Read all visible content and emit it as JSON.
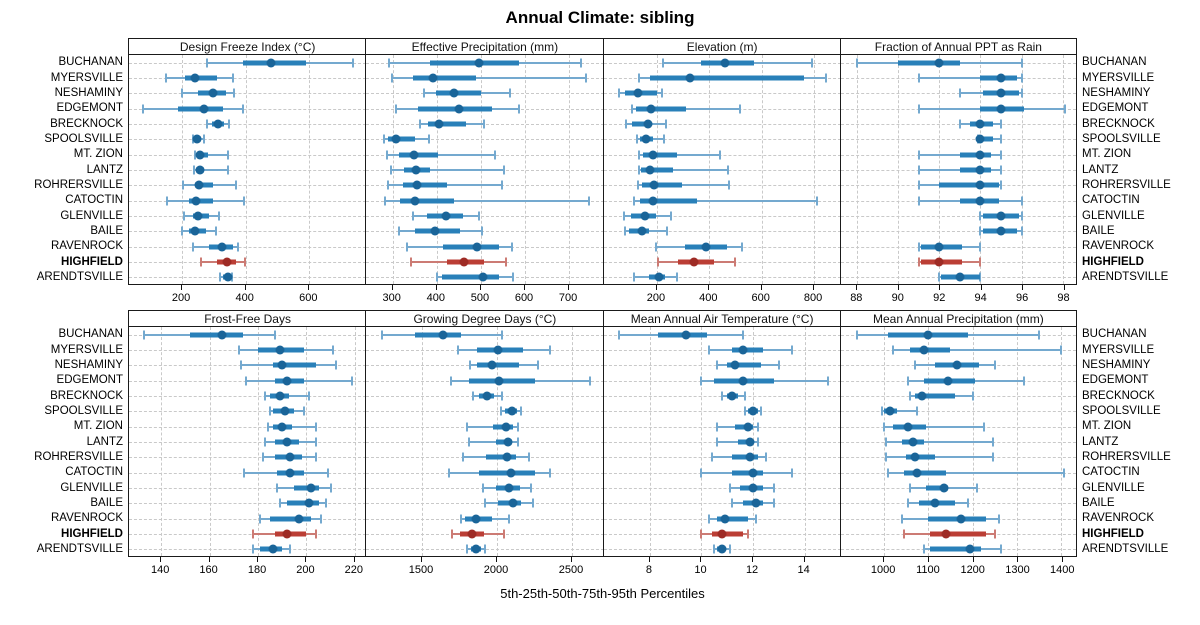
{
  "title": "Annual Climate: sibling",
  "caption": "5th-25th-50th-75th-95th Percentiles",
  "colors": {
    "normal_dot": "#1a6599",
    "normal_band": "#2980b9",
    "normal_line": "#74a9cf",
    "highlight_dot": "#9e2b25",
    "highlight_band": "#bb3e35",
    "highlight_line": "#cc7b74",
    "grid": "#c9c9c9",
    "border": "#1a1a1a"
  },
  "chart_data": {
    "type": "dot-whisker-percentile",
    "layout": "2 rows x 4 columns trellis, site labels on left and right, dashed grid on, no legend",
    "percentiles": [
      5,
      25,
      50,
      75,
      95
    ],
    "sites": [
      "BUCHANAN",
      "MYERSVILLE",
      "NESHAMINY",
      "EDGEMONT",
      "BRECKNOCK",
      "SPOOLSVILLE",
      "MT. ZION",
      "LANTZ",
      "ROHRERSVILLE",
      "CATOCTIN",
      "GLENVILLE",
      "BAILE",
      "RAVENROCK",
      "HIGHFIELD",
      "ARENDTSVILLE"
    ],
    "highlight_site": "HIGHFIELD",
    "panels": [
      {
        "title": "Design Freeze Index (°C)",
        "ticks": [
          200,
          400,
          600
        ],
        "xlim": [
          33,
          779
        ],
        "series": [
          [
            278,
            392,
            480,
            590,
            738
          ],
          [
            148,
            210,
            240,
            309,
            361
          ],
          [
            201,
            249,
            297,
            339,
            363
          ],
          [
            77,
            188,
            270,
            328,
            393
          ],
          [
            277,
            294,
            314,
            333,
            347
          ],
          [
            233,
            239,
            248,
            259,
            270
          ],
          [
            239,
            247,
            257,
            283,
            345
          ],
          [
            236,
            243,
            256,
            268,
            343
          ],
          [
            204,
            239,
            253,
            296,
            370
          ],
          [
            151,
            222,
            244,
            296,
            395
          ],
          [
            206,
            233,
            250,
            286,
            315
          ],
          [
            199,
            222,
            241,
            275,
            308
          ],
          [
            235,
            286,
            325,
            360,
            376
          ],
          [
            259,
            309,
            342,
            370,
            397
          ],
          [
            320,
            328,
            345,
            351,
            358
          ]
        ]
      },
      {
        "title": "Effective Precipitation (mm)",
        "ticks": [
          300,
          400,
          500,
          600,
          700
        ],
        "xlim": [
          240,
          778
        ],
        "series": [
          [
            291,
            384,
            495,
            586,
            727
          ],
          [
            299,
            346,
            392,
            490,
            739
          ],
          [
            371,
            398,
            440,
            500,
            566
          ],
          [
            307,
            358,
            451,
            526,
            586
          ],
          [
            363,
            379,
            404,
            466,
            506
          ],
          [
            280,
            289,
            307,
            351,
            382
          ],
          [
            287,
            315,
            349,
            403,
            533
          ],
          [
            295,
            325,
            353,
            384,
            552
          ],
          [
            290,
            323,
            354,
            423,
            548
          ],
          [
            282,
            316,
            351,
            440,
            746
          ],
          [
            347,
            377,
            420,
            459,
            496
          ],
          [
            315,
            351,
            395,
            453,
            502
          ],
          [
            332,
            414,
            492,
            541,
            571
          ],
          [
            341,
            422,
            461,
            507,
            556
          ],
          [
            401,
            412,
            505,
            541,
            573
          ]
        ]
      },
      {
        "title": "Elevation (m)",
        "ticks": [
          200,
          400,
          600,
          800
        ],
        "xlim": [
          -4,
          902
        ],
        "series": [
          [
            225,
            367,
            460,
            570,
            791
          ],
          [
            133,
            175,
            325,
            763,
            844
          ],
          [
            57,
            78,
            129,
            200,
            218
          ],
          [
            104,
            120,
            179,
            310,
            519
          ],
          [
            82,
            105,
            167,
            177,
            234
          ],
          [
            124,
            135,
            158,
            186,
            228
          ],
          [
            130,
            146,
            186,
            275,
            439
          ],
          [
            130,
            139,
            175,
            260,
            471
          ],
          [
            129,
            143,
            190,
            297,
            475
          ],
          [
            114,
            135,
            186,
            352,
            810
          ],
          [
            76,
            101,
            156,
            196,
            253
          ],
          [
            80,
            95,
            142,
            171,
            240
          ],
          [
            196,
            308,
            386,
            468,
            525
          ],
          [
            203,
            282,
            342,
            418,
            500
          ],
          [
            114,
            171,
            209,
            232,
            278
          ]
        ]
      },
      {
        "title": "Fraction of Annual PPT as Rain",
        "ticks": [
          88,
          90,
          92,
          94,
          96,
          98
        ],
        "xlim": [
          87.2,
          98.65
        ],
        "series": [
          [
            88.0,
            90.0,
            92.0,
            93.0,
            96.0
          ],
          [
            91.0,
            94.0,
            95.0,
            95.8,
            96.0
          ],
          [
            93.0,
            94.1,
            95.0,
            95.9,
            96.0
          ],
          [
            91.0,
            94.0,
            95.0,
            96.1,
            98.1
          ],
          [
            93.0,
            93.5,
            94.0,
            94.6,
            95.0
          ],
          [
            93.9,
            94.0,
            94.0,
            94.6,
            95.0
          ],
          [
            91.0,
            93.0,
            94.0,
            94.5,
            95.0
          ],
          [
            91.0,
            93.0,
            94.0,
            94.5,
            95.0
          ],
          [
            91.0,
            92.0,
            94.0,
            94.9,
            95.0
          ],
          [
            91.0,
            93.0,
            94.0,
            94.9,
            96.0
          ],
          [
            94.0,
            94.1,
            95.0,
            95.9,
            96.0
          ],
          [
            94.0,
            94.1,
            95.0,
            95.8,
            96.0
          ],
          [
            91.0,
            91.1,
            92.0,
            93.1,
            94.0
          ],
          [
            91.0,
            91.1,
            92.0,
            93.1,
            94.0
          ],
          [
            92.0,
            92.1,
            93.0,
            94.0,
            94.0
          ]
        ]
      },
      {
        "title": "Frost-Free Days",
        "ticks": [
          140,
          160,
          180,
          200,
          220
        ],
        "xlim": [
          126.7,
          224.7
        ],
        "series": [
          [
            133,
            152,
            165,
            174,
            187
          ],
          [
            172,
            180,
            189,
            199,
            211
          ],
          [
            173,
            186,
            190,
            204,
            212
          ],
          [
            175,
            187,
            192,
            199,
            219
          ],
          [
            183,
            185,
            189,
            193,
            201
          ],
          [
            185,
            186,
            191,
            195,
            199
          ],
          [
            184,
            186,
            190,
            194,
            204
          ],
          [
            183,
            187,
            192,
            197,
            204
          ],
          [
            182,
            187,
            193,
            198,
            204
          ],
          [
            174,
            188,
            193,
            199,
            209
          ],
          [
            188,
            195,
            202,
            205,
            210
          ],
          [
            189,
            192,
            201,
            205,
            208
          ],
          [
            181,
            185,
            197,
            202,
            206
          ],
          [
            178,
            187,
            192,
            200,
            204
          ],
          [
            178,
            181,
            186,
            190,
            193
          ]
        ]
      },
      {
        "title": "Growing Degree Days (°C)",
        "ticks": [
          1500,
          2000,
          2500
        ],
        "xlim": [
          1128,
          2710
        ],
        "series": [
          [
            1230,
            1450,
            1640,
            1760,
            2030
          ],
          [
            1740,
            1865,
            2005,
            2170,
            2350
          ],
          [
            1820,
            1865,
            1965,
            2145,
            2270
          ],
          [
            1695,
            1815,
            2015,
            2250,
            2620
          ],
          [
            1840,
            1880,
            1930,
            1980,
            2030
          ],
          [
            2025,
            2050,
            2100,
            2130,
            2160
          ],
          [
            1800,
            1970,
            2060,
            2105,
            2140
          ],
          [
            1810,
            1995,
            2070,
            2100,
            2140
          ],
          [
            1770,
            1925,
            2065,
            2125,
            2210
          ],
          [
            1680,
            1880,
            2090,
            2250,
            2355
          ],
          [
            1905,
            1990,
            2080,
            2150,
            2225
          ],
          [
            1920,
            2005,
            2105,
            2160,
            2240
          ],
          [
            1760,
            1785,
            1860,
            1965,
            2080
          ],
          [
            1700,
            1750,
            1835,
            1915,
            2045
          ],
          [
            1800,
            1825,
            1860,
            1890,
            1920
          ]
        ]
      },
      {
        "title": "Mean Annual Air Temperature (°C)",
        "ticks": [
          8,
          10,
          12,
          14
        ],
        "xlim": [
          6.2,
          15.4
        ],
        "series": [
          [
            6.8,
            8.3,
            9.4,
            10.2,
            11.6
          ],
          [
            10.3,
            11.2,
            11.6,
            12.4,
            13.5
          ],
          [
            10.6,
            11.0,
            11.3,
            12.3,
            13.0
          ],
          [
            10.0,
            10.5,
            11.6,
            12.8,
            14.9
          ],
          [
            10.8,
            11.0,
            11.2,
            11.4,
            11.7
          ],
          [
            11.7,
            11.8,
            12.0,
            12.2,
            12.3
          ],
          [
            10.6,
            11.3,
            11.8,
            12.0,
            12.2
          ],
          [
            10.6,
            11.4,
            11.9,
            12.0,
            12.2
          ],
          [
            10.4,
            11.2,
            11.9,
            12.2,
            12.5
          ],
          [
            10.0,
            11.2,
            12.0,
            12.4,
            13.5
          ],
          [
            11.1,
            11.5,
            12.0,
            12.4,
            12.8
          ],
          [
            11.2,
            11.6,
            12.1,
            12.4,
            12.8
          ],
          [
            10.3,
            10.6,
            10.9,
            11.8,
            12.1
          ],
          [
            10.0,
            10.4,
            10.8,
            11.6,
            11.8
          ],
          [
            10.5,
            10.6,
            10.8,
            10.9,
            11.1
          ]
        ]
      },
      {
        "title": "Mean Annual Precipitation (mm)",
        "ticks": [
          1000,
          1100,
          1200,
          1300,
          1400
        ],
        "xlim": [
          903,
          1433
        ],
        "series": [
          [
            940,
            1010,
            1100,
            1190,
            1350
          ],
          [
            1020,
            1060,
            1090,
            1150,
            1400
          ],
          [
            1070,
            1115,
            1165,
            1215,
            1250
          ],
          [
            1055,
            1090,
            1145,
            1205,
            1315
          ],
          [
            1060,
            1070,
            1085,
            1160,
            1200
          ],
          [
            995,
            1000,
            1015,
            1030,
            1075
          ],
          [
            1000,
            1020,
            1055,
            1095,
            1225
          ],
          [
            1005,
            1040,
            1065,
            1090,
            1245
          ],
          [
            1005,
            1050,
            1070,
            1115,
            1245
          ],
          [
            1010,
            1045,
            1075,
            1140,
            1405
          ],
          [
            1060,
            1095,
            1135,
            1145,
            1210
          ],
          [
            1055,
            1080,
            1115,
            1160,
            1190
          ],
          [
            1040,
            1100,
            1175,
            1230,
            1260
          ],
          [
            1045,
            1105,
            1140,
            1230,
            1250
          ],
          [
            1090,
            1105,
            1195,
            1220,
            1265
          ]
        ]
      }
    ]
  }
}
